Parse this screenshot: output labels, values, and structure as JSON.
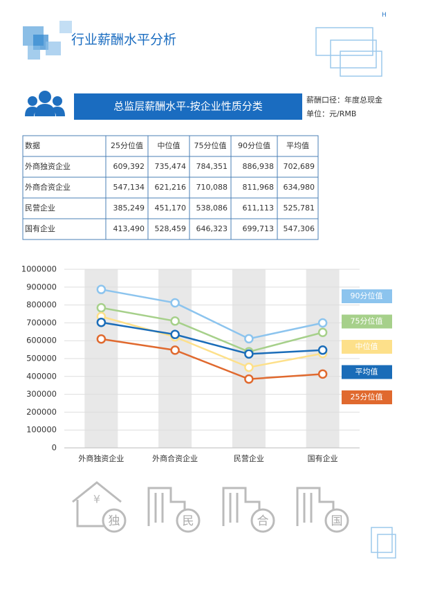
{
  "header": {
    "mark": "H",
    "title": "行业薪酬水平分析",
    "banner": "总监层薪酬水平-按企业性质分类",
    "note1": "薪酬口径：年度总现金",
    "note2": "单位：元/RMB"
  },
  "table": {
    "header": [
      "数据",
      "25分位值",
      "中位值",
      "75分位值",
      "90分位值",
      "平均值"
    ],
    "rows": [
      [
        "外商独资企业",
        "609,392",
        "735,474",
        "784,351",
        "886,938",
        "702,689"
      ],
      [
        "外商合资企业",
        "547,134",
        "621,216",
        "710,088",
        "811,968",
        "634,980"
      ],
      [
        "民营企业",
        "385,249",
        "451,170",
        "538,086",
        "611,113",
        "525,781"
      ],
      [
        "国有企业",
        "413,490",
        "528,459",
        "646,323",
        "699,713",
        "547,306"
      ]
    ]
  },
  "chart_data": {
    "type": "line",
    "categories": [
      "外商独资企业",
      "外商合资企业",
      "民营企业",
      "国有企业"
    ],
    "series": [
      {
        "name": "90分位值",
        "color": "#8cc4ee",
        "values": [
          886938,
          811968,
          611113,
          699713
        ]
      },
      {
        "name": "75分位值",
        "color": "#a6d08a",
        "values": [
          784351,
          710088,
          538086,
          646323
        ]
      },
      {
        "name": "中位值",
        "color": "#fde08a",
        "values": [
          735474,
          621216,
          451170,
          528459
        ]
      },
      {
        "name": "平均值",
        "color": "#1a6cb8",
        "values": [
          702689,
          634980,
          525781,
          547306
        ]
      },
      {
        "name": "25分位值",
        "color": "#e0692e",
        "values": [
          609392,
          547134,
          385249,
          413490
        ]
      }
    ],
    "ylim": [
      0,
      1000000
    ],
    "yticks": [
      0,
      100000,
      200000,
      300000,
      400000,
      500000,
      600000,
      700000,
      800000,
      900000,
      1000000
    ],
    "grid": true,
    "legend": "right"
  },
  "icons": [
    {
      "symbol": "¥",
      "label": "独"
    },
    {
      "label": "民"
    },
    {
      "label": "合"
    },
    {
      "label": "国"
    }
  ]
}
